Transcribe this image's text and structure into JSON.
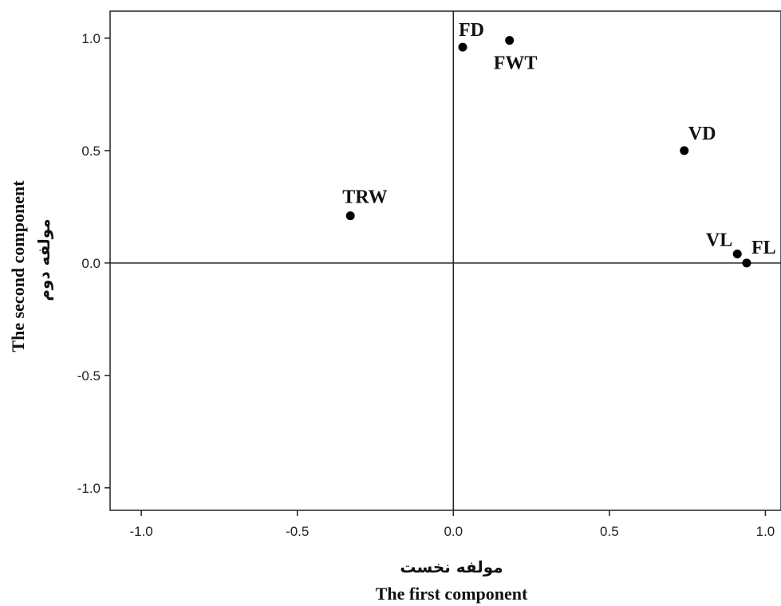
{
  "chart_data": {
    "type": "scatter",
    "xlabel": "The first component",
    "xlabel_fa": "مولفه نخست",
    "ylabel": "The second component",
    "ylabel_fa": "مولفه دوم",
    "xlim": [
      -1.1,
      1.05
    ],
    "ylim": [
      -1.1,
      1.12
    ],
    "xticks": [
      -1.0,
      -0.5,
      0.0,
      0.5,
      1.0
    ],
    "xtick_labels": [
      "-1.0",
      "-0.5",
      "0.0",
      "0.5",
      "1.0"
    ],
    "yticks": [
      1.0,
      0.5,
      0.0,
      -0.5,
      -1.0
    ],
    "ytick_labels": [
      "1.0",
      "0.5",
      "0.0",
      "-0.5",
      "-1.0"
    ],
    "reference_lines": {
      "x": 0,
      "y": 0
    },
    "grid": false,
    "points": [
      {
        "label": "FD",
        "x": 0.03,
        "y": 0.96
      },
      {
        "label": "FWT",
        "x": 0.18,
        "y": 0.99
      },
      {
        "label": "VD",
        "x": 0.74,
        "y": 0.5
      },
      {
        "label": "TRW",
        "x": -0.33,
        "y": 0.21
      },
      {
        "label": "VL",
        "x": 0.91,
        "y": 0.04
      },
      {
        "label": "FL",
        "x": 0.94,
        "y": 0.0
      }
    ]
  },
  "colors": {
    "points": "#000000",
    "axes": "#222222",
    "background": "#ffffff"
  }
}
